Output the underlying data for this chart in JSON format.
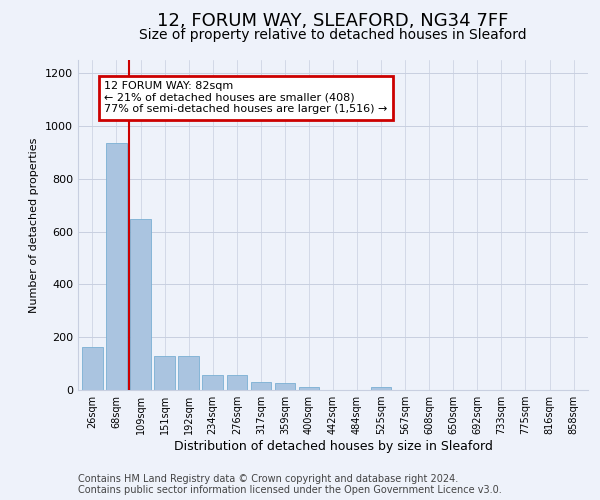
{
  "title": "12, FORUM WAY, SLEAFORD, NG34 7FF",
  "subtitle": "Size of property relative to detached houses in Sleaford",
  "xlabel": "Distribution of detached houses by size in Sleaford",
  "ylabel": "Number of detached properties",
  "categories": [
    "26sqm",
    "68sqm",
    "109sqm",
    "151sqm",
    "192sqm",
    "234sqm",
    "276sqm",
    "317sqm",
    "359sqm",
    "400sqm",
    "442sqm",
    "484sqm",
    "525sqm",
    "567sqm",
    "608sqm",
    "650sqm",
    "692sqm",
    "733sqm",
    "775sqm",
    "816sqm",
    "858sqm"
  ],
  "values": [
    163,
    935,
    648,
    128,
    130,
    57,
    55,
    30,
    25,
    12,
    0,
    0,
    12,
    0,
    0,
    0,
    0,
    0,
    0,
    0,
    0
  ],
  "bar_color": "#aac4e0",
  "bar_edge_color": "#7aafd4",
  "vline_x": 1.5,
  "annotation_text_line1": "12 FORUM WAY: 82sqm",
  "annotation_text_line2": "← 21% of detached houses are smaller (408)",
  "annotation_text_line3": "77% of semi-detached houses are larger (1,516) →",
  "annotation_box_facecolor": "#ffffff",
  "annotation_box_edgecolor": "#cc0000",
  "vline_color": "#cc0000",
  "ylim": [
    0,
    1250
  ],
  "yticks": [
    0,
    200,
    400,
    600,
    800,
    1000,
    1200
  ],
  "footer1": "Contains HM Land Registry data © Crown copyright and database right 2024.",
  "footer2": "Contains public sector information licensed under the Open Government Licence v3.0.",
  "background_color": "#eef2fa",
  "plot_background": "#eef2fa",
  "grid_color": "#c8cfe0",
  "title_fontsize": 13,
  "subtitle_fontsize": 10,
  "ylabel_fontsize": 8,
  "xlabel_fontsize": 9,
  "tick_fontsize": 7,
  "ytick_fontsize": 8,
  "annot_fontsize": 8,
  "footer_fontsize": 7
}
